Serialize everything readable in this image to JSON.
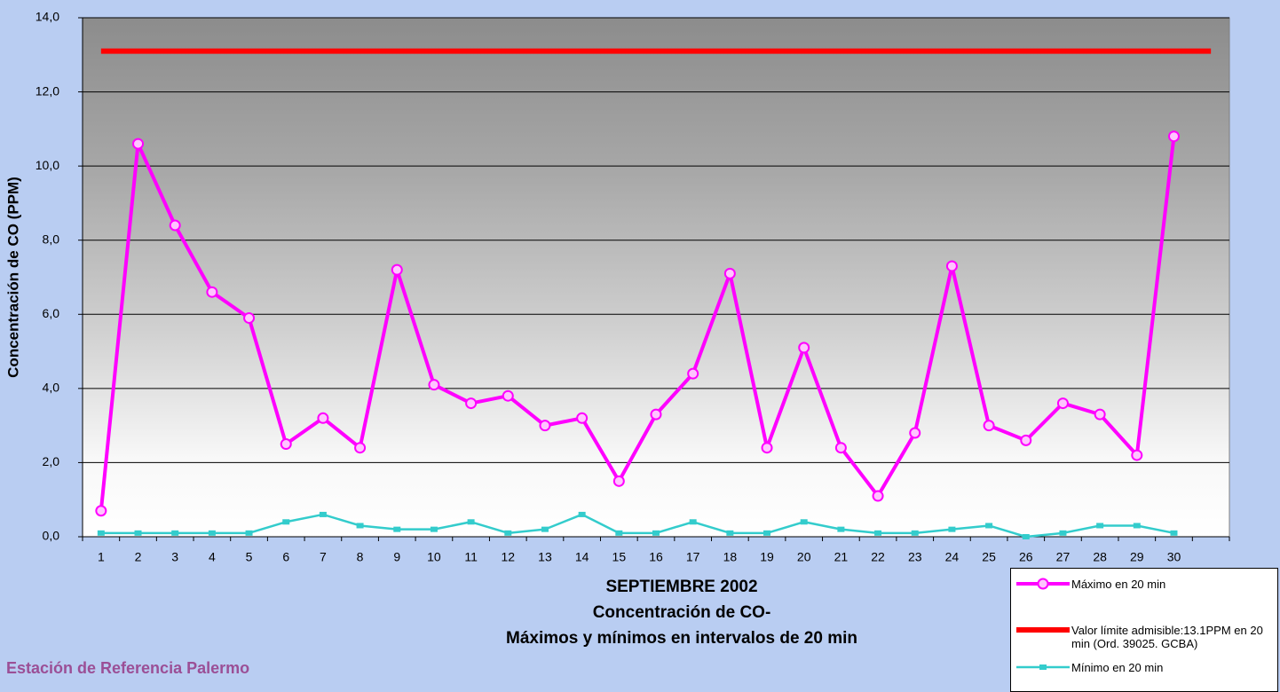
{
  "chart_data": {
    "type": "line",
    "title": [
      "SEPTIEMBRE 2002",
      "Concentración de CO-",
      "Máximos y mínimos en intervalos de 20 min"
    ],
    "ylabel": "Concentración de CO (PPM)",
    "footer": "Estación de Referencia Palermo",
    "categories": [
      "1",
      "2",
      "3",
      "4",
      "5",
      "6",
      "7",
      "8",
      "9",
      "10",
      "11",
      "12",
      "13",
      "14",
      "15",
      "16",
      "17",
      "18",
      "19",
      "20",
      "21",
      "22",
      "23",
      "24",
      "25",
      "26",
      "27",
      "28",
      "29",
      "30",
      null
    ],
    "series": [
      {
        "name": "Máximo en 20 min",
        "color": "#ff00ff",
        "marker": "circle",
        "values": [
          0.7,
          10.6,
          8.4,
          6.6,
          5.9,
          2.5,
          3.2,
          2.4,
          7.2,
          4.1,
          3.6,
          3.8,
          3.0,
          3.2,
          1.5,
          3.3,
          4.4,
          7.1,
          2.4,
          5.1,
          2.4,
          1.1,
          2.8,
          7.3,
          3.0,
          2.6,
          3.6,
          3.3,
          2.2,
          10.8,
          null
        ]
      },
      {
        "name": "Valor límite admisible:13.1PPM en 20 min (Ord. 39025. GCBA)",
        "color": "#ff0000",
        "marker": "none",
        "values": [
          13.1,
          13.1,
          13.1,
          13.1,
          13.1,
          13.1,
          13.1,
          13.1,
          13.1,
          13.1,
          13.1,
          13.1,
          13.1,
          13.1,
          13.1,
          13.1,
          13.1,
          13.1,
          13.1,
          13.1,
          13.1,
          13.1,
          13.1,
          13.1,
          13.1,
          13.1,
          13.1,
          13.1,
          13.1,
          13.1,
          13.1
        ]
      },
      {
        "name": "Mínimo en 20 min",
        "color": "#33cccc",
        "marker": "square",
        "values": [
          0.1,
          0.1,
          0.1,
          0.1,
          0.1,
          0.4,
          0.6,
          0.3,
          0.2,
          0.2,
          0.4,
          0.1,
          0.2,
          0.6,
          0.1,
          0.1,
          0.4,
          0.1,
          0.1,
          0.4,
          0.2,
          0.1,
          0.1,
          0.2,
          0.3,
          0.0,
          0.1,
          0.3,
          0.3,
          0.1,
          null
        ]
      }
    ],
    "ylim": [
      0,
      14
    ],
    "yticks": [
      {
        "value": 0,
        "label": "0,0"
      },
      {
        "value": 2,
        "label": "2,0"
      },
      {
        "value": 4,
        "label": "4,0"
      },
      {
        "value": 6,
        "label": "6,0"
      },
      {
        "value": 8,
        "label": "8,0"
      },
      {
        "value": 10,
        "label": "10,0"
      },
      {
        "value": 12,
        "label": "12,0"
      },
      {
        "value": 14,
        "label": "14,0"
      }
    ],
    "grid": true,
    "legend": "bottom-right"
  }
}
